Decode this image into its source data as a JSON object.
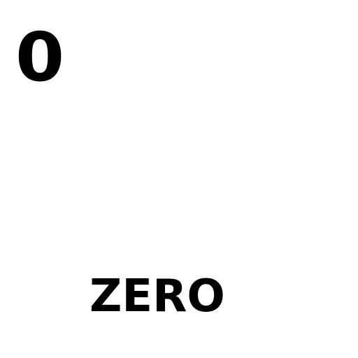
{
  "card": {
    "numeral": "0",
    "word": "ZERO"
  },
  "colors": {
    "background": "#ffffff",
    "text": "#000000"
  }
}
